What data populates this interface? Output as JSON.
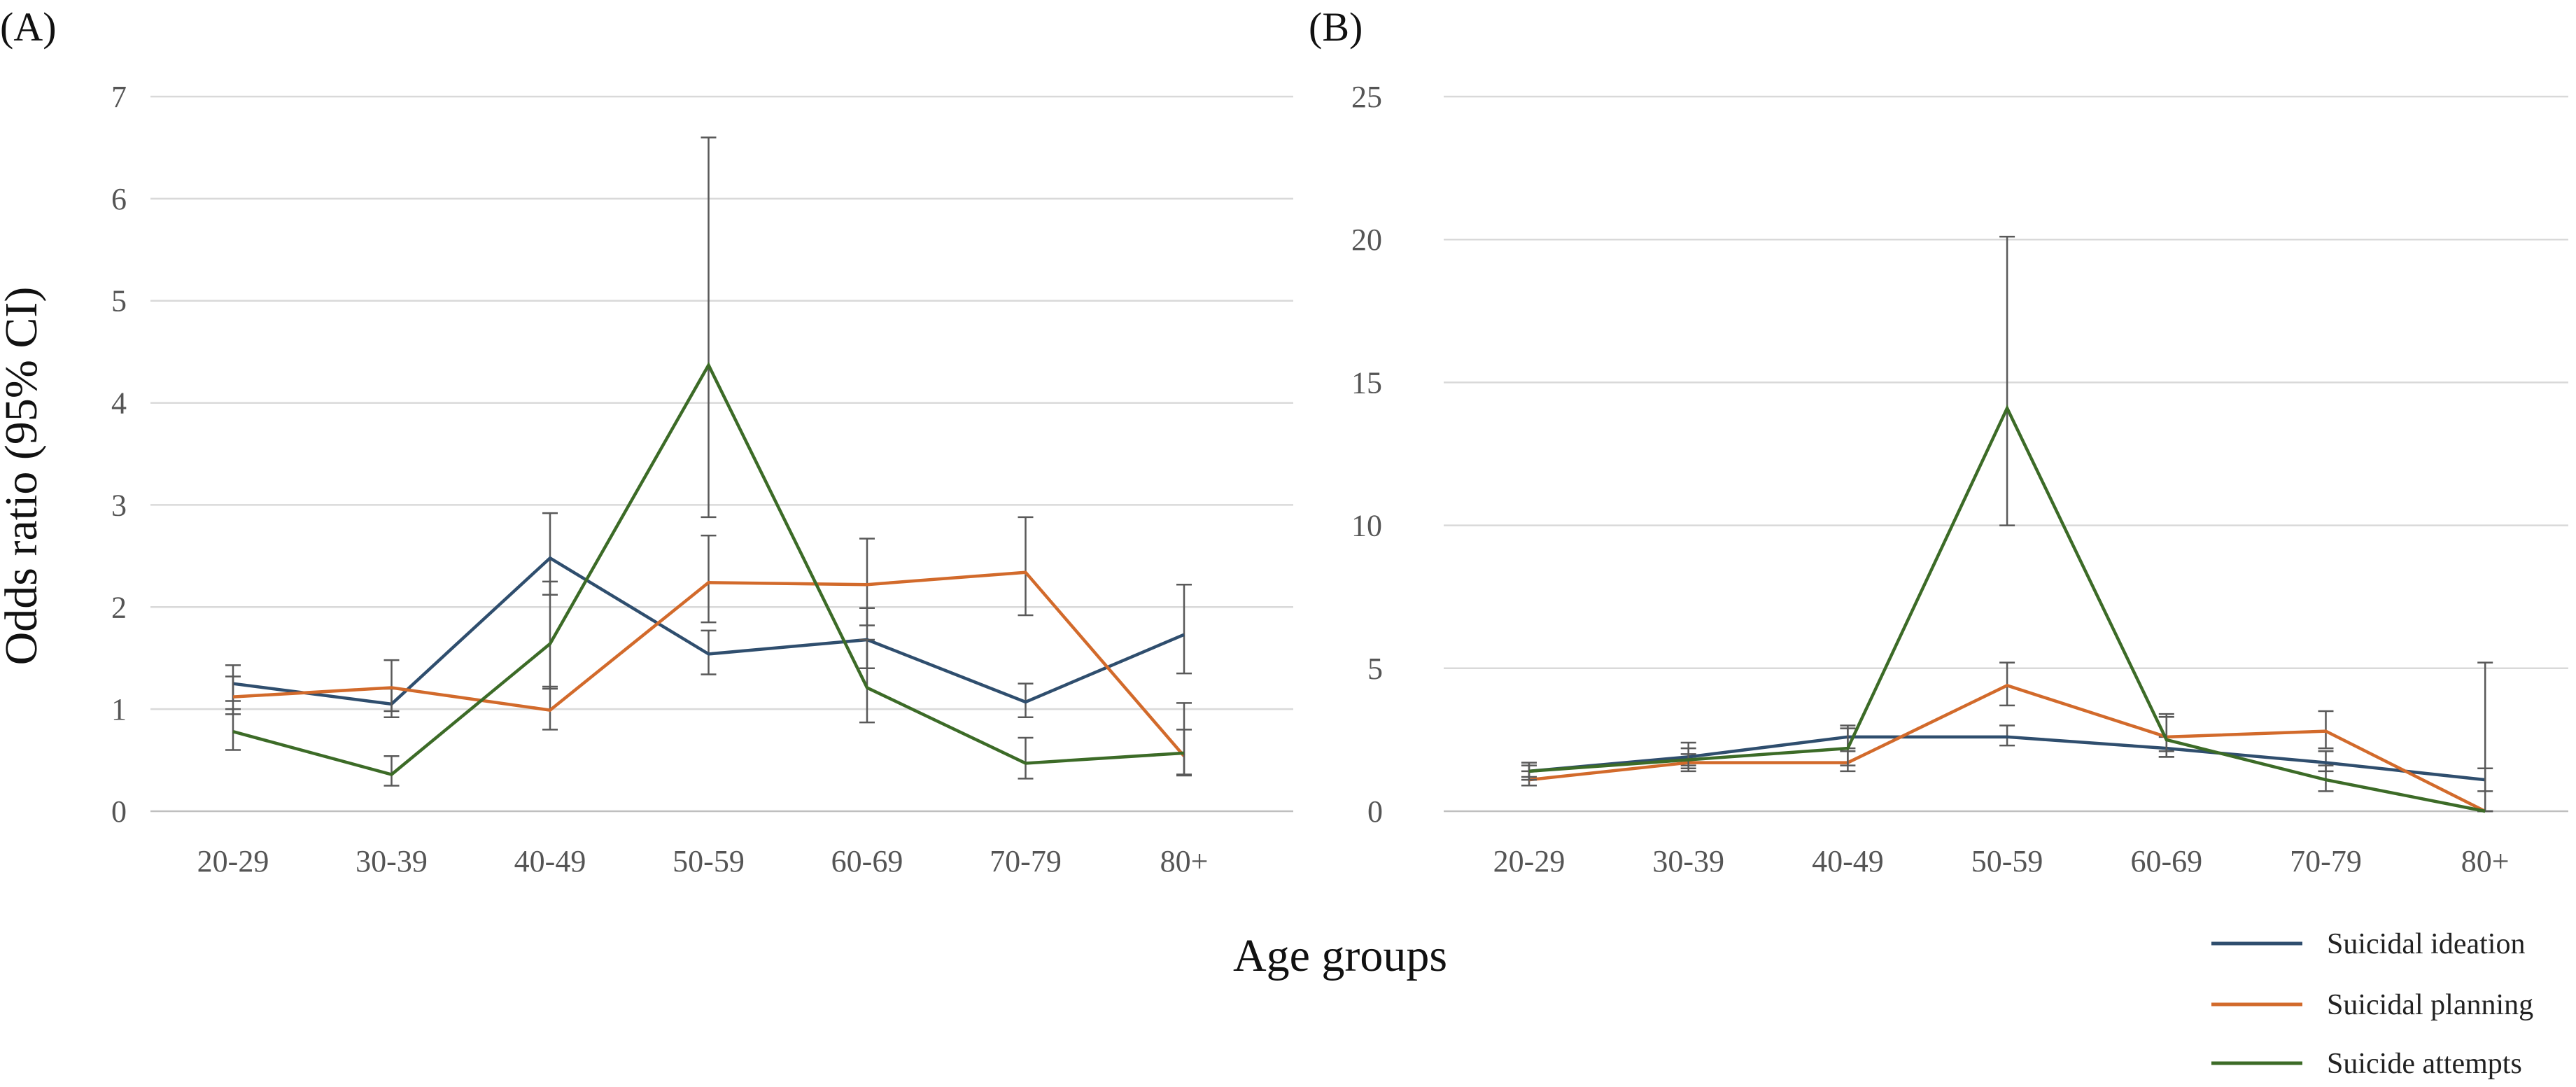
{
  "chart_data": [
    {
      "panel": "(A)",
      "type": "line",
      "categories": [
        "20-29",
        "30-39",
        "40-49",
        "50-59",
        "60-69",
        "70-79",
        "80+"
      ],
      "ylim": [
        0,
        7
      ],
      "yticks": [
        0,
        1,
        2,
        3,
        4,
        5,
        6,
        7
      ],
      "ylabel": "Odds ratio (95% CI)",
      "grid": true,
      "series": [
        {
          "name": "Suicidal ideation",
          "color": "#2f4e6e",
          "values": [
            1.25,
            1.05,
            2.48,
            1.54,
            1.68,
            1.07,
            1.73
          ],
          "ci_low": [
            1.08,
            0.92,
            2.12,
            1.34,
            1.4,
            0.92,
            1.35
          ],
          "ci_high": [
            1.43,
            1.2,
            2.92,
            1.77,
            1.99,
            1.25,
            2.22
          ]
        },
        {
          "name": "Suicidal planning",
          "color": "#d26a2b",
          "values": [
            1.12,
            1.21,
            0.99,
            2.24,
            2.22,
            2.34,
            0.54
          ],
          "ci_low": [
            0.95,
            0.98,
            0.8,
            1.85,
            1.82,
            1.92,
            0.36
          ],
          "ci_high": [
            1.32,
            1.48,
            1.22,
            2.7,
            2.67,
            2.88,
            0.8
          ]
        },
        {
          "name": "Suicide attempts",
          "color": "#3c6b27",
          "values": [
            0.78,
            0.36,
            1.64,
            4.37,
            1.21,
            0.47,
            0.57
          ],
          "ci_low": [
            0.6,
            0.25,
            1.2,
            2.88,
            0.87,
            0.32,
            0.35
          ],
          "ci_high": [
            1.0,
            0.54,
            2.25,
            6.6,
            1.68,
            0.72,
            1.06
          ]
        }
      ]
    },
    {
      "panel": "(B)",
      "type": "line",
      "categories": [
        "20-29",
        "30-39",
        "40-49",
        "50-59",
        "60-69",
        "70-79",
        "80+"
      ],
      "ylim": [
        0,
        25
      ],
      "yticks": [
        0,
        5,
        10,
        15,
        20,
        25
      ],
      "grid": true,
      "series": [
        {
          "name": "Suicidal ideation",
          "color": "#2f4e6e",
          "values": [
            1.4,
            1.9,
            2.6,
            2.6,
            2.2,
            1.7,
            1.1
          ],
          "ci_low": [
            1.2,
            1.6,
            2.2,
            2.3,
            1.9,
            1.4,
            0.7
          ],
          "ci_high": [
            1.6,
            2.2,
            3.0,
            3.0,
            2.6,
            2.1,
            1.5
          ]
        },
        {
          "name": "Suicidal planning",
          "color": "#d26a2b",
          "values": [
            1.1,
            1.7,
            1.7,
            4.4,
            2.6,
            2.8,
            0.0
          ],
          "ci_low": [
            0.9,
            1.4,
            1.4,
            3.7,
            2.1,
            2.2,
            0.0
          ],
          "ci_high": [
            1.4,
            2.0,
            2.1,
            5.2,
            3.3,
            3.5,
            0.0
          ]
        },
        {
          "name": "Suicide attempts",
          "color": "#3c6b27",
          "values": [
            1.4,
            1.8,
            2.2,
            14.1,
            2.5,
            1.1,
            0.0
          ],
          "ci_low": [
            1.1,
            1.5,
            1.6,
            10.0,
            1.9,
            0.7,
            0.0
          ],
          "ci_high": [
            1.7,
            2.4,
            2.9,
            20.1,
            3.4,
            1.6,
            5.2
          ]
        }
      ]
    }
  ],
  "xlabel": "Age groups",
  "legend": [
    {
      "label": "Suicidal ideation",
      "color": "#2f4e6e"
    },
    {
      "label": "Suicidal planning",
      "color": "#d26a2b"
    },
    {
      "label": "Suicide attempts",
      "color": "#3c6b27"
    }
  ]
}
